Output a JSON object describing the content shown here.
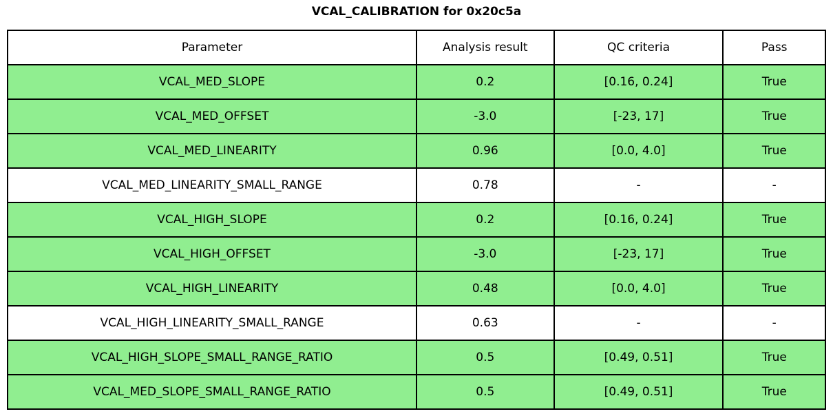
{
  "title": "VCAL_CALIBRATION for 0x20c5a",
  "chart_data": {
    "type": "table",
    "title": "VCAL_CALIBRATION for 0x20c5a",
    "columns": [
      "Parameter",
      "Analysis result",
      "QC criteria",
      "Pass"
    ],
    "rows": [
      {
        "parameter": "VCAL_MED_SLOPE",
        "result": "0.2",
        "criteria": "[0.16, 0.24]",
        "pass": "True",
        "highlight": true
      },
      {
        "parameter": "VCAL_MED_OFFSET",
        "result": "-3.0",
        "criteria": "[-23, 17]",
        "pass": "True",
        "highlight": true
      },
      {
        "parameter": "VCAL_MED_LINEARITY",
        "result": "0.96",
        "criteria": "[0.0, 4.0]",
        "pass": "True",
        "highlight": true
      },
      {
        "parameter": "VCAL_MED_LINEARITY_SMALL_RANGE",
        "result": "0.78",
        "criteria": "-",
        "pass": "-",
        "highlight": false
      },
      {
        "parameter": "VCAL_HIGH_SLOPE",
        "result": "0.2",
        "criteria": "[0.16, 0.24]",
        "pass": "True",
        "highlight": true
      },
      {
        "parameter": "VCAL_HIGH_OFFSET",
        "result": "-3.0",
        "criteria": "[-23, 17]",
        "pass": "True",
        "highlight": true
      },
      {
        "parameter": "VCAL_HIGH_LINEARITY",
        "result": "0.48",
        "criteria": "[0.0, 4.0]",
        "pass": "True",
        "highlight": true
      },
      {
        "parameter": "VCAL_HIGH_LINEARITY_SMALL_RANGE",
        "result": "0.63",
        "criteria": "-",
        "pass": "-",
        "highlight": false
      },
      {
        "parameter": "VCAL_HIGH_SLOPE_SMALL_RANGE_RATIO",
        "result": "0.5",
        "criteria": "[0.49, 0.51]",
        "pass": "True",
        "highlight": true
      },
      {
        "parameter": "VCAL_MED_SLOPE_SMALL_RANGE_RATIO",
        "result": "0.5",
        "criteria": "[0.49, 0.51]",
        "pass": "True",
        "highlight": true
      }
    ],
    "colors": {
      "pass_row_bg": "#90EE90",
      "default_row_bg": "#FFFFFF",
      "border": "#000000"
    },
    "layout": {
      "legend": "none",
      "grid": "full cell borders"
    }
  }
}
